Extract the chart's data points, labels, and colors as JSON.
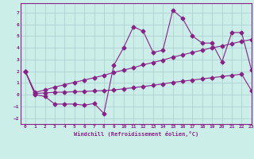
{
  "xlabel": "Windchill (Refroidissement éolien,°C)",
  "x": [
    0,
    1,
    2,
    3,
    4,
    5,
    6,
    7,
    8,
    9,
    10,
    11,
    12,
    13,
    14,
    15,
    16,
    17,
    18,
    19,
    20,
    21,
    22,
    23
  ],
  "line1": [
    2.0,
    0.0,
    -0.15,
    -0.8,
    -0.8,
    -0.8,
    -0.9,
    -0.75,
    -1.6,
    2.5,
    4.0,
    5.8,
    5.4,
    3.6,
    3.8,
    7.2,
    6.5,
    5.0,
    4.4,
    4.4,
    2.8,
    5.3,
    5.3,
    2.1
  ],
  "line2": [
    2.0,
    0.2,
    0.4,
    0.65,
    0.85,
    1.05,
    1.25,
    1.45,
    1.65,
    1.9,
    2.1,
    2.3,
    2.55,
    2.75,
    2.95,
    3.2,
    3.4,
    3.6,
    3.8,
    4.0,
    4.15,
    4.35,
    4.55,
    4.7
  ],
  "line3": [
    2.0,
    0.1,
    0.15,
    0.2,
    0.22,
    0.25,
    0.28,
    0.32,
    0.35,
    0.4,
    0.5,
    0.6,
    0.7,
    0.8,
    0.92,
    1.05,
    1.15,
    1.25,
    1.35,
    1.45,
    1.55,
    1.65,
    1.75,
    0.35
  ],
  "color": "#882288",
  "bg_color": "#cceee8",
  "grid_color": "#aacccc",
  "ylim": [
    -2.5,
    7.8
  ],
  "xlim": [
    -0.5,
    23
  ],
  "yticks": [
    -2,
    -1,
    0,
    1,
    2,
    3,
    4,
    5,
    6,
    7
  ],
  "xticks": [
    0,
    1,
    2,
    3,
    4,
    5,
    6,
    7,
    8,
    9,
    10,
    11,
    12,
    13,
    14,
    15,
    16,
    17,
    18,
    19,
    20,
    21,
    22,
    23
  ]
}
